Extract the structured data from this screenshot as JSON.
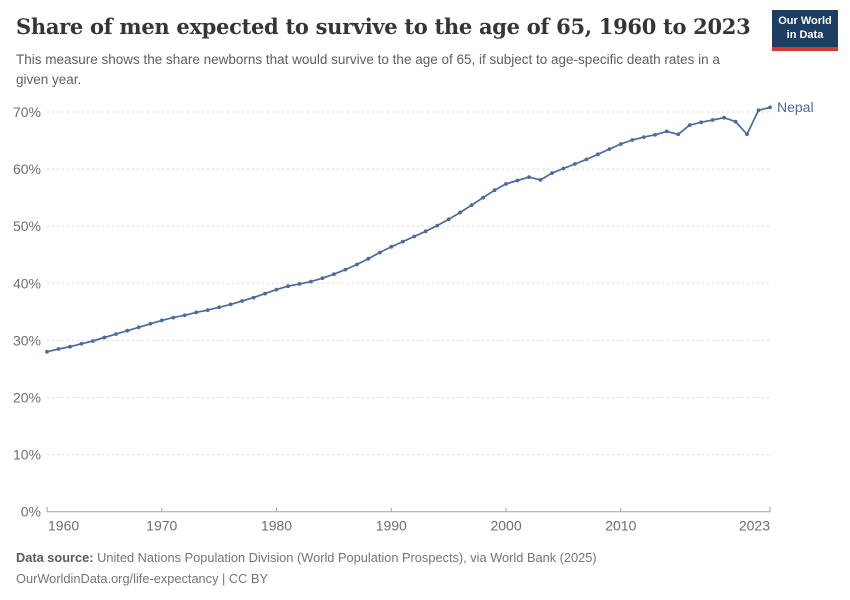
{
  "header": {
    "title": "Share of men expected to survive to the age of 65, 1960 to 2023",
    "subtitle": "This measure shows the share newborns that would survive to the age of 65, if subject to age-specific death rates in a given year.",
    "logo": {
      "line1": "Our World",
      "line2": "in Data"
    }
  },
  "chart_data": {
    "type": "line",
    "title": "Share of men expected to survive to the age of 65, 1960 to 2023",
    "xlabel": "",
    "ylabel": "",
    "xlim": [
      1960,
      2023
    ],
    "ylim": [
      0,
      70
    ],
    "x_ticks": [
      1960,
      1970,
      1980,
      1990,
      2000,
      2010,
      2023
    ],
    "y_ticks": [
      0,
      10,
      20,
      30,
      40,
      50,
      60,
      70
    ],
    "y_tick_suffix": "%",
    "grid": "dashed-horizontal",
    "legend_position": "end-of-line-label",
    "series": [
      {
        "name": "Nepal",
        "color": "#4c6a9c",
        "x": [
          1960,
          1961,
          1962,
          1963,
          1964,
          1965,
          1966,
          1967,
          1968,
          1969,
          1970,
          1971,
          1972,
          1973,
          1974,
          1975,
          1976,
          1977,
          1978,
          1979,
          1980,
          1981,
          1982,
          1983,
          1984,
          1985,
          1986,
          1987,
          1988,
          1989,
          1990,
          1991,
          1992,
          1993,
          1994,
          1995,
          1996,
          1997,
          1998,
          1999,
          2000,
          2001,
          2002,
          2003,
          2004,
          2005,
          2006,
          2007,
          2008,
          2009,
          2010,
          2011,
          2012,
          2013,
          2014,
          2015,
          2016,
          2017,
          2018,
          2019,
          2020,
          2021,
          2022,
          2023
        ],
        "values": [
          28.0,
          28.5,
          28.9,
          29.4,
          29.9,
          30.5,
          31.1,
          31.7,
          32.3,
          32.9,
          33.5,
          34.0,
          34.4,
          34.9,
          35.3,
          35.8,
          36.3,
          36.9,
          37.5,
          38.2,
          38.9,
          39.5,
          39.9,
          40.3,
          40.9,
          41.6,
          42.4,
          43.3,
          44.3,
          45.4,
          46.4,
          47.3,
          48.2,
          49.1,
          50.1,
          51.2,
          52.4,
          53.7,
          55.0,
          56.3,
          57.4,
          58.0,
          58.6,
          58.1,
          59.3,
          60.1,
          60.9,
          61.7,
          62.6,
          63.5,
          64.4,
          65.1,
          65.6,
          66.0,
          66.6,
          66.1,
          67.7,
          68.2,
          68.6,
          69.0,
          68.3,
          66.1,
          70.3,
          70.8
        ]
      }
    ]
  },
  "footer": {
    "source_label": "Data source:",
    "source_text": "United Nations Population Division (World Population Prospects), via World Bank (2025)",
    "link_text": "OurWorldinData.org/life-expectancy | CC BY"
  },
  "colors": {
    "accent_line": "#4c6a9c",
    "logo_bg": "#1d3d63",
    "logo_red": "#d8372e",
    "gridline": "#dadada",
    "axis": "#a3a3a3",
    "tick_text": "#6e6e6e"
  }
}
